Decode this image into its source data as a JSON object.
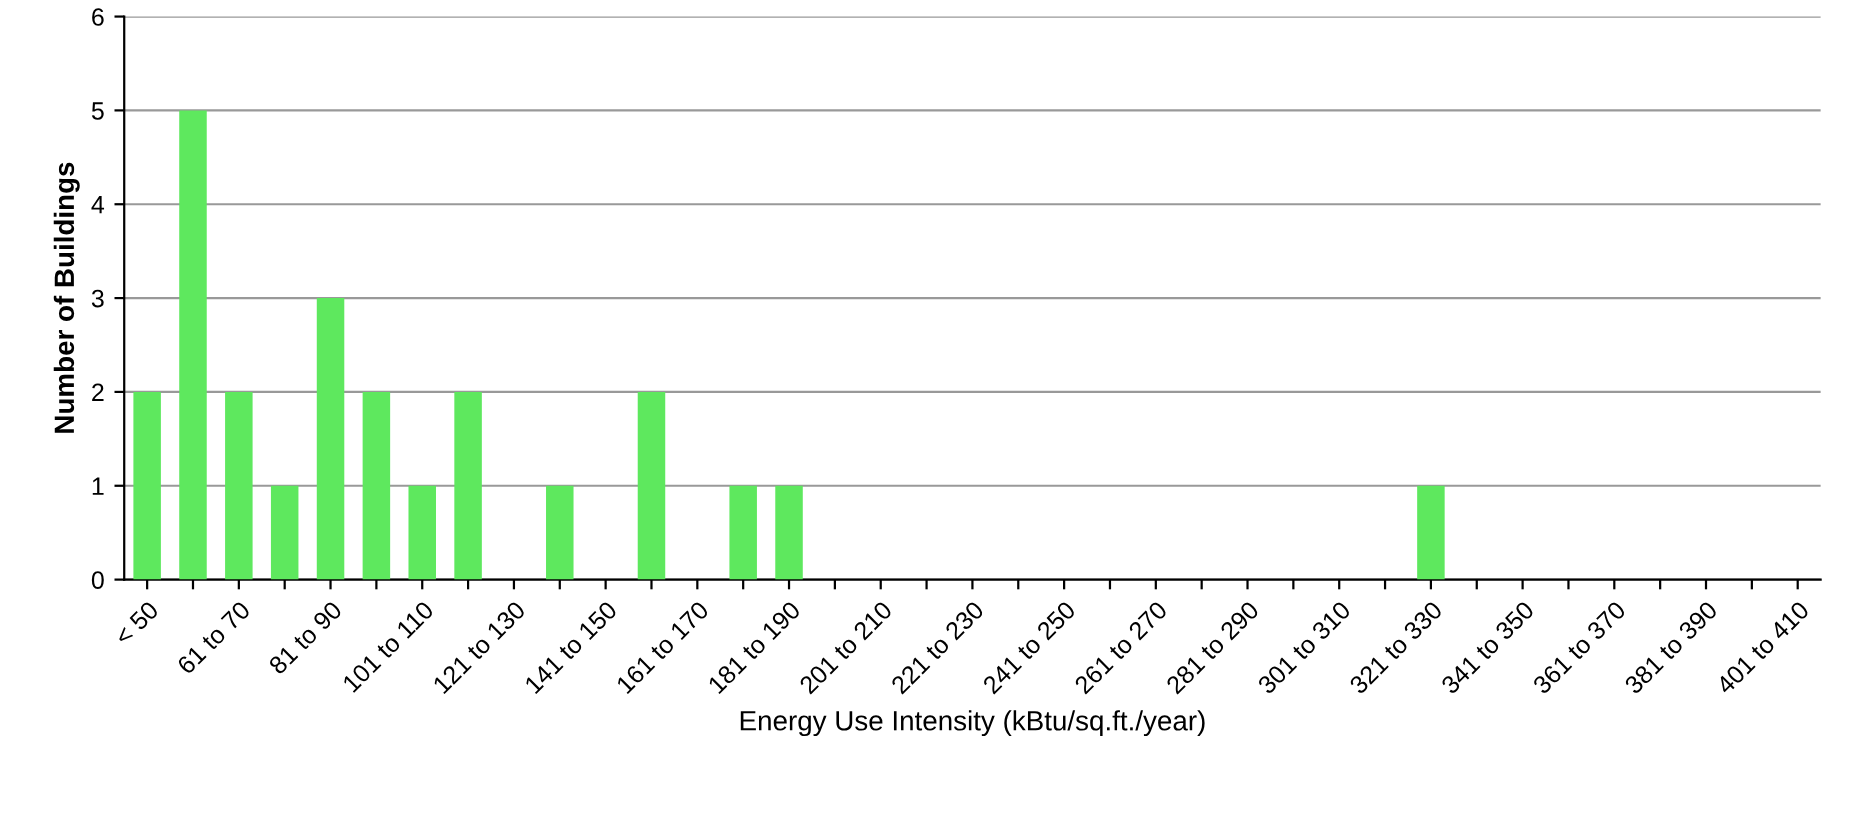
{
  "chart_data": {
    "type": "bar",
    "xlabel": "Energy Use Intensity (kBtu/sq.ft./year)",
    "ylabel": "Number of Buildings",
    "categories": [
      "< 50",
      null,
      "61 to 70",
      null,
      "81 to 90",
      null,
      "101 to 110",
      null,
      "121 to 130",
      null,
      "141 to 150",
      null,
      "161 to 170",
      null,
      "181 to 190",
      null,
      "201 to 210",
      null,
      "221 to 230",
      null,
      "241 to 250",
      null,
      "261 to 270",
      null,
      "281 to 290",
      null,
      "301 to 310",
      null,
      "321 to 330",
      null,
      "341 to 350",
      null,
      "361 to 370",
      null,
      "381 to 390",
      null,
      "401 to 410"
    ],
    "values": [
      2,
      5,
      2,
      1,
      3,
      2,
      1,
      2,
      0,
      1,
      0,
      2,
      0,
      1,
      1,
      0,
      0,
      0,
      0,
      0,
      0,
      0,
      0,
      0,
      0,
      0,
      0,
      0,
      1,
      0,
      0,
      0,
      0,
      0,
      0,
      0,
      0
    ],
    "color": "#5ee85e",
    "ylim": [
      0,
      6
    ],
    "yticks": [
      0,
      1,
      2,
      3,
      4,
      5,
      6
    ],
    "grid": "y",
    "legend": false
  }
}
